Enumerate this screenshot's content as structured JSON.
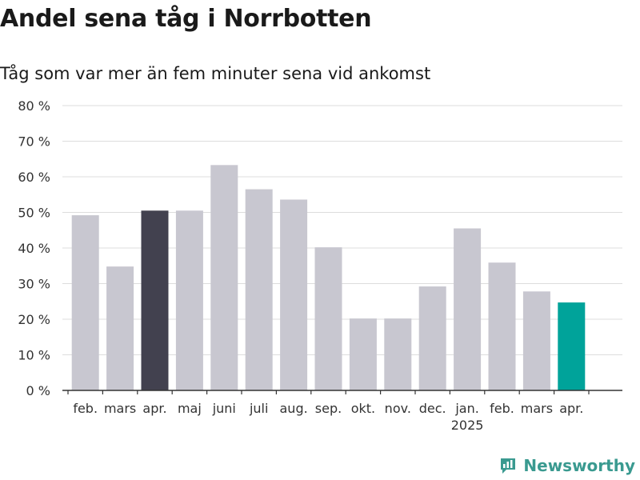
{
  "chart_data": {
    "type": "bar",
    "title": "Andel sena tåg i Norrbotten",
    "subtitle": "Tåg som var mer än fem minuter sena vid ankomst",
    "xlabel": "",
    "ylabel": "",
    "ylim": [
      0,
      80
    ],
    "yticks": [
      0,
      10,
      20,
      30,
      40,
      50,
      60,
      70,
      80
    ],
    "ytick_suffix": " %",
    "grid": true,
    "categories": [
      "feb.",
      "mars",
      "apr.",
      "maj",
      "juni",
      "juli",
      "aug.",
      "sep.",
      "okt.",
      "nov.",
      "dec.",
      "jan.",
      "feb.",
      "mars",
      "apr."
    ],
    "category_sublabels": [
      "",
      "",
      "",
      "",
      "",
      "",
      "",
      "",
      "",
      "",
      "",
      "2025",
      "",
      "",
      ""
    ],
    "values": [
      49.2,
      34.8,
      50.5,
      50.5,
      63.3,
      56.5,
      53.6,
      40.2,
      20.2,
      20.2,
      29.2,
      45.5,
      35.9,
      27.8,
      24.7
    ],
    "colors": [
      "#c8c7d0",
      "#c8c7d0",
      "#42414f",
      "#c8c7d0",
      "#c8c7d0",
      "#c8c7d0",
      "#c8c7d0",
      "#c8c7d0",
      "#c8c7d0",
      "#c8c7d0",
      "#c8c7d0",
      "#c8c7d0",
      "#c8c7d0",
      "#c8c7d0",
      "#00a39a"
    ]
  },
  "branding": {
    "logo_text": "Newsworthy",
    "logo_icon": "newsworthy-chart-icon",
    "color": "#3a9a90"
  }
}
